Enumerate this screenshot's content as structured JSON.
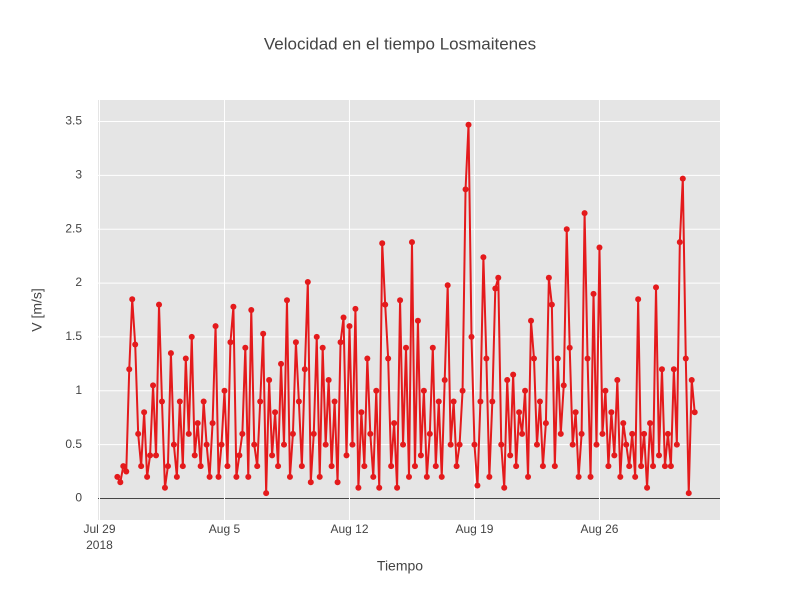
{
  "chart_data": {
    "type": "line",
    "title": "Velocidad en el tiempo Losmaitenes",
    "x_label": "Tiempo",
    "y_label": "V [m/s]",
    "color": "#e41a1c",
    "grid": true,
    "xlim": [
      "2018-07-28 22:00",
      "2018-09-01 18:00"
    ],
    "ylim": [
      -0.2,
      3.7
    ],
    "xticks": [
      {
        "value": "2018-07-29 00:00",
        "label": "Jul 29"
      },
      {
        "value": "2018-08-05 00:00",
        "label": "Aug 5"
      },
      {
        "value": "2018-08-12 00:00",
        "label": "Aug 12"
      },
      {
        "value": "2018-08-19 00:00",
        "label": "Aug 19"
      },
      {
        "value": "2018-08-26 00:00",
        "label": "Aug 26"
      }
    ],
    "x_year_label": "2018",
    "yticks": [
      0,
      0.5,
      1,
      1.5,
      2,
      2.5,
      3,
      3.5
    ],
    "x": [
      "2018-07-30 00:00",
      "2018-07-30 04:00",
      "2018-07-30 08:00",
      "2018-07-30 12:00",
      "2018-07-30 16:00",
      "2018-07-30 20:00",
      "2018-07-31 00:00",
      "2018-07-31 04:00",
      "2018-07-31 08:00",
      "2018-07-31 12:00",
      "2018-07-31 16:00",
      "2018-07-31 20:00",
      "2018-08-01 00:00",
      "2018-08-01 04:00",
      "2018-08-01 08:00",
      "2018-08-01 12:00",
      "2018-08-01 16:00",
      "2018-08-01 20:00",
      "2018-08-02 00:00",
      "2018-08-02 04:00",
      "2018-08-02 08:00",
      "2018-08-02 12:00",
      "2018-08-02 16:00",
      "2018-08-02 20:00",
      "2018-08-03 00:00",
      "2018-08-03 04:00",
      "2018-08-03 08:00",
      "2018-08-03 12:00",
      "2018-08-03 16:00",
      "2018-08-03 20:00",
      "2018-08-04 00:00",
      "2018-08-04 04:00",
      "2018-08-04 08:00",
      "2018-08-04 12:00",
      "2018-08-04 16:00",
      "2018-08-04 20:00",
      "2018-08-05 00:00",
      "2018-08-05 04:00",
      "2018-08-05 08:00",
      "2018-08-05 12:00",
      "2018-08-05 16:00",
      "2018-08-05 20:00",
      "2018-08-06 00:00",
      "2018-08-06 04:00",
      "2018-08-06 08:00",
      "2018-08-06 12:00",
      "2018-08-06 16:00",
      "2018-08-06 20:00",
      "2018-08-07 00:00",
      "2018-08-07 04:00",
      "2018-08-07 08:00",
      "2018-08-07 12:00",
      "2018-08-07 16:00",
      "2018-08-07 20:00",
      "2018-08-08 00:00",
      "2018-08-08 04:00",
      "2018-08-08 08:00",
      "2018-08-08 12:00",
      "2018-08-08 16:00",
      "2018-08-08 20:00",
      "2018-08-09 00:00",
      "2018-08-09 04:00",
      "2018-08-09 08:00",
      "2018-08-09 12:00",
      "2018-08-09 16:00",
      "2018-08-09 20:00",
      "2018-08-10 00:00",
      "2018-08-10 04:00",
      "2018-08-10 08:00",
      "2018-08-10 12:00",
      "2018-08-10 16:00",
      "2018-08-10 20:00",
      "2018-08-11 00:00",
      "2018-08-11 04:00",
      "2018-08-11 08:00",
      "2018-08-11 12:00",
      "2018-08-11 16:00",
      "2018-08-11 20:00",
      "2018-08-12 00:00",
      "2018-08-12 04:00",
      "2018-08-12 08:00",
      "2018-08-12 12:00",
      "2018-08-12 16:00",
      "2018-08-12 20:00",
      "2018-08-13 00:00",
      "2018-08-13 04:00",
      "2018-08-13 08:00",
      "2018-08-13 12:00",
      "2018-08-13 16:00",
      "2018-08-13 20:00",
      "2018-08-14 00:00",
      "2018-08-14 04:00",
      "2018-08-14 08:00",
      "2018-08-14 12:00",
      "2018-08-14 16:00",
      "2018-08-14 20:00",
      "2018-08-15 00:00",
      "2018-08-15 04:00",
      "2018-08-15 08:00",
      "2018-08-15 12:00",
      "2018-08-15 16:00",
      "2018-08-15 20:00",
      "2018-08-16 00:00",
      "2018-08-16 04:00",
      "2018-08-16 08:00",
      "2018-08-16 12:00",
      "2018-08-16 16:00",
      "2018-08-16 20:00",
      "2018-08-17 00:00",
      "2018-08-17 04:00",
      "2018-08-17 08:00",
      "2018-08-17 12:00",
      "2018-08-17 16:00",
      "2018-08-17 20:00",
      "2018-08-18 00:00",
      "2018-08-18 04:00",
      "2018-08-18 08:00",
      "2018-08-18 12:00",
      "2018-08-18 16:00",
      "2018-08-18 20:00",
      "2018-08-19 00:00",
      "2018-08-19 04:00",
      "2018-08-19 08:00",
      "2018-08-19 12:00",
      "2018-08-19 16:00",
      "2018-08-19 20:00",
      "2018-08-20 00:00",
      "2018-08-20 04:00",
      "2018-08-20 08:00",
      "2018-08-20 12:00",
      "2018-08-20 16:00",
      "2018-08-20 20:00",
      "2018-08-21 00:00",
      "2018-08-21 04:00",
      "2018-08-21 08:00",
      "2018-08-21 12:00",
      "2018-08-21 16:00",
      "2018-08-21 20:00",
      "2018-08-22 00:00",
      "2018-08-22 04:00",
      "2018-08-22 08:00",
      "2018-08-22 12:00",
      "2018-08-22 16:00",
      "2018-08-22 20:00",
      "2018-08-23 00:00",
      "2018-08-23 04:00",
      "2018-08-23 08:00",
      "2018-08-23 12:00",
      "2018-08-23 16:00",
      "2018-08-23 20:00",
      "2018-08-24 00:00",
      "2018-08-24 04:00",
      "2018-08-24 08:00",
      "2018-08-24 12:00",
      "2018-08-24 16:00",
      "2018-08-24 20:00",
      "2018-08-25 00:00",
      "2018-08-25 04:00",
      "2018-08-25 08:00",
      "2018-08-25 12:00",
      "2018-08-25 16:00",
      "2018-08-25 20:00",
      "2018-08-26 00:00",
      "2018-08-26 04:00",
      "2018-08-26 08:00",
      "2018-08-26 12:00",
      "2018-08-26 16:00",
      "2018-08-26 20:00",
      "2018-08-27 00:00",
      "2018-08-27 04:00",
      "2018-08-27 08:00",
      "2018-08-27 12:00",
      "2018-08-27 16:00",
      "2018-08-27 20:00",
      "2018-08-28 00:00",
      "2018-08-28 04:00",
      "2018-08-28 08:00",
      "2018-08-28 12:00",
      "2018-08-28 16:00",
      "2018-08-28 20:00",
      "2018-08-29 00:00",
      "2018-08-29 04:00",
      "2018-08-29 08:00",
      "2018-08-29 12:00",
      "2018-08-29 16:00",
      "2018-08-29 20:00",
      "2018-08-30 00:00",
      "2018-08-30 04:00",
      "2018-08-30 08:00",
      "2018-08-30 12:00",
      "2018-08-30 16:00",
      "2018-08-30 20:00",
      "2018-08-31 00:00",
      "2018-08-31 04:00",
      "2018-08-31 08:00"
    ],
    "values": [
      0.2,
      0.15,
      0.3,
      0.25,
      1.2,
      1.85,
      1.43,
      0.6,
      0.3,
      0.8,
      0.2,
      0.4,
      1.05,
      0.4,
      1.8,
      0.9,
      0.1,
      0.3,
      1.35,
      0.5,
      0.2,
      0.9,
      0.3,
      1.3,
      0.6,
      1.5,
      0.4,
      0.7,
      0.3,
      0.9,
      0.5,
      0.2,
      0.7,
      1.6,
      0.2,
      0.5,
      1.0,
      0.3,
      1.45,
      1.78,
      0.2,
      0.4,
      0.6,
      1.4,
      0.2,
      1.75,
      0.5,
      0.3,
      0.9,
      1.53,
      0.05,
      1.1,
      0.4,
      0.8,
      0.3,
      1.25,
      0.5,
      1.84,
      0.2,
      0.6,
      1.45,
      0.9,
      0.3,
      1.2,
      2.01,
      0.15,
      0.6,
      1.5,
      0.2,
      1.4,
      0.5,
      1.1,
      0.3,
      0.9,
      0.15,
      1.45,
      1.68,
      0.4,
      1.6,
      0.5,
      1.76,
      0.1,
      0.8,
      0.3,
      1.3,
      0.6,
      0.2,
      1.0,
      0.1,
      2.37,
      1.8,
      1.3,
      0.3,
      0.7,
      0.1,
      1.84,
      0.5,
      1.4,
      0.2,
      2.38,
      0.3,
      1.65,
      0.4,
      1.0,
      0.2,
      0.6,
      1.4,
      0.3,
      0.9,
      0.2,
      1.1,
      1.98,
      0.5,
      0.9,
      0.3,
      0.5,
      1.0,
      2.87,
      3.47,
      1.5,
      0.5,
      0.12,
      0.9,
      2.24,
      1.3,
      0.2,
      0.9,
      1.95,
      2.05,
      0.5,
      0.1,
      1.1,
      0.4,
      1.15,
      0.3,
      0.8,
      0.6,
      1.0,
      0.2,
      1.65,
      1.3,
      0.5,
      0.9,
      0.3,
      0.7,
      2.05,
      1.8,
      0.3,
      1.3,
      0.6,
      1.05,
      2.5,
      1.4,
      0.5,
      0.8,
      0.2,
      0.6,
      2.65,
      1.3,
      0.2,
      1.9,
      0.5,
      2.33,
      0.6,
      1.0,
      0.3,
      0.8,
      0.4,
      1.1,
      0.2,
      0.7,
      0.5,
      0.3,
      0.6,
      0.2,
      1.85,
      0.3,
      0.6,
      0.1,
      0.7,
      0.3,
      1.96,
      0.4,
      1.2,
      0.3,
      0.6,
      0.3,
      1.2,
      0.5,
      2.38,
      2.97,
      1.3,
      0.05,
      1.1,
      0.8
    ]
  }
}
